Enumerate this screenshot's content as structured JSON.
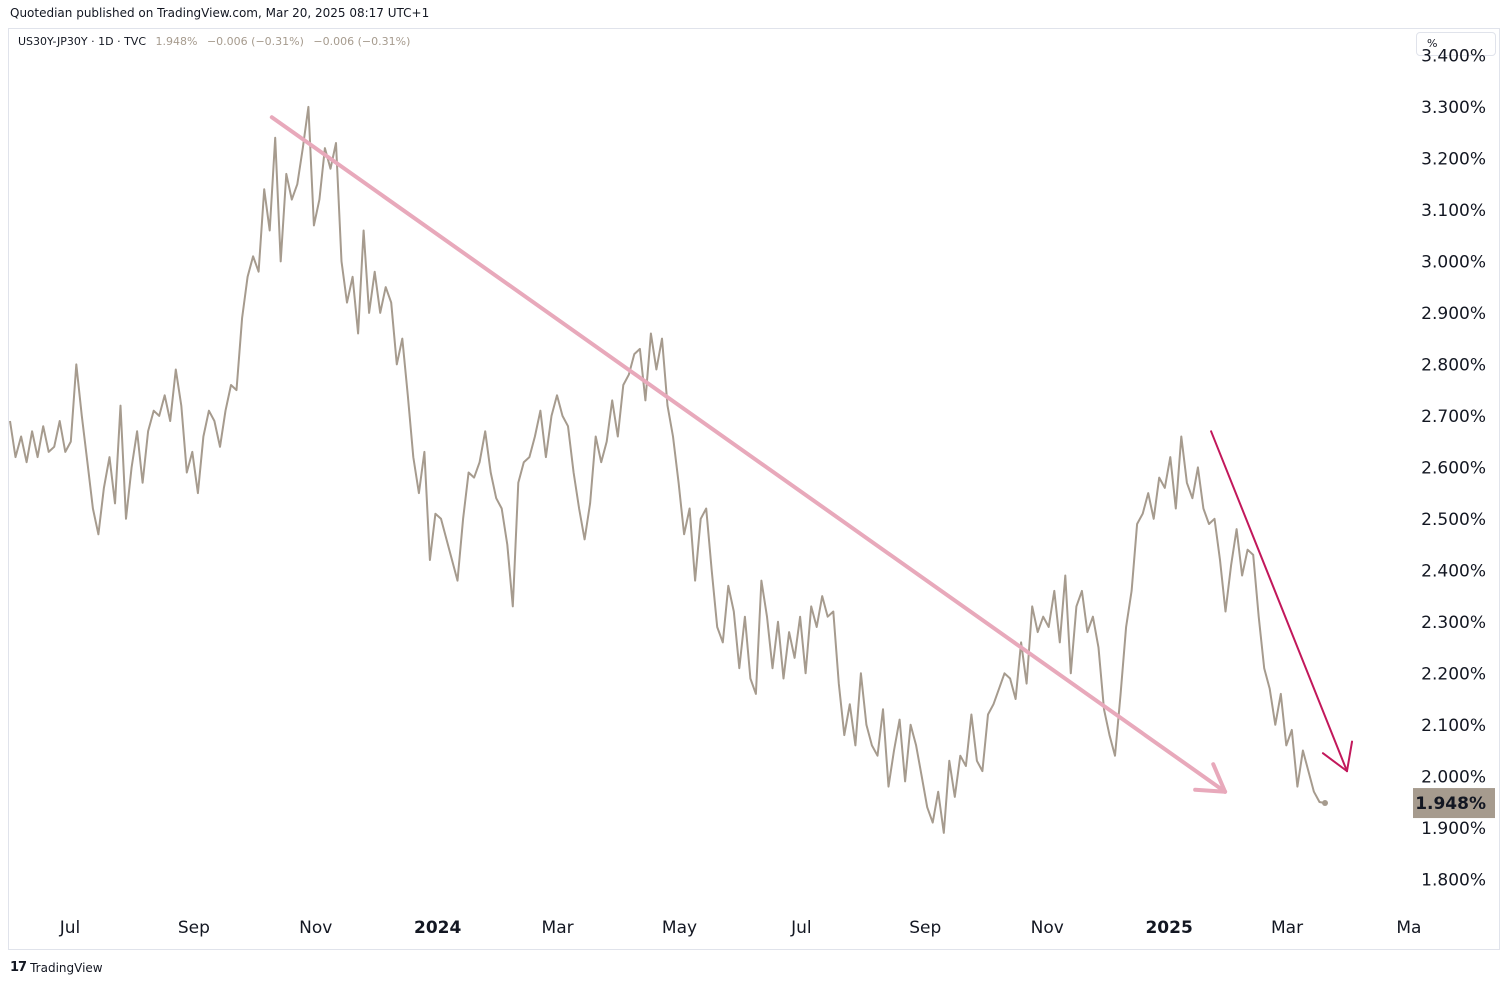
{
  "header": {
    "published": "Quotedian published on TradingView.com, Mar 20, 2025 08:17 UTC+1"
  },
  "legend": {
    "symbol": "US30Y-JP30Y · 1D · TVC",
    "last": "1.948%",
    "change": "−0.006 (−0.31%)",
    "change2": "−0.006 (−0.31%)"
  },
  "unit_label": "%",
  "footer": {
    "logo": "17",
    "brand": "TradingView"
  },
  "colors": {
    "line": "#a69b8e",
    "trend": "#e8a9bb",
    "arrow": "#c2185b",
    "price_tag": "#a69b8e"
  },
  "chart_data": {
    "type": "line",
    "series": [
      {
        "values": [
          2.69,
          2.62,
          2.66,
          2.61,
          2.67,
          2.62,
          2.68,
          2.63,
          2.64,
          2.69,
          2.63,
          2.65,
          2.8,
          2.7,
          2.61,
          2.52,
          2.47,
          2.56,
          2.62,
          2.53,
          2.72,
          2.5,
          2.6,
          2.67,
          2.57,
          2.67,
          2.71,
          2.7,
          2.74,
          2.69,
          2.79,
          2.72,
          2.59,
          2.63,
          2.55,
          2.66,
          2.71,
          2.69,
          2.64,
          2.71,
          2.76,
          2.75,
          2.89,
          2.97,
          3.01,
          2.98,
          3.14,
          3.06,
          3.24,
          3.0,
          3.17,
          3.12,
          3.15,
          3.22,
          3.3,
          3.07,
          3.12,
          3.22,
          3.18,
          3.23,
          3.0,
          2.92,
          2.97,
          2.86,
          3.06,
          2.9,
          2.98,
          2.9,
          2.95,
          2.92,
          2.8,
          2.85,
          2.74,
          2.62,
          2.55,
          2.63,
          2.42,
          2.51,
          2.5,
          2.46,
          2.42,
          2.38,
          2.5,
          2.59,
          2.58,
          2.61,
          2.67,
          2.59,
          2.54,
          2.52,
          2.45,
          2.33,
          2.57,
          2.61,
          2.62,
          2.66,
          2.71,
          2.62,
          2.7,
          2.74,
          2.7,
          2.68,
          2.59,
          2.52,
          2.46,
          2.53,
          2.66,
          2.61,
          2.65,
          2.73,
          2.66,
          2.76,
          2.78,
          2.82,
          2.83,
          2.73,
          2.86,
          2.79,
          2.85,
          2.72,
          2.66,
          2.57,
          2.47,
          2.52,
          2.38,
          2.5,
          2.52,
          2.4,
          2.29,
          2.26,
          2.37,
          2.32,
          2.21,
          2.31,
          2.19,
          2.16,
          2.38,
          2.31,
          2.21,
          2.3,
          2.19,
          2.28,
          2.23,
          2.31,
          2.2,
          2.33,
          2.29,
          2.35,
          2.31,
          2.32,
          2.18,
          2.08,
          2.14,
          2.06,
          2.2,
          2.1,
          2.06,
          2.04,
          2.13,
          1.98,
          2.05,
          2.11,
          1.99,
          2.1,
          2.06,
          2.0,
          1.94,
          1.91,
          1.97,
          1.89,
          2.03,
          1.96,
          2.04,
          2.02,
          2.12,
          2.03,
          2.01,
          2.12,
          2.14,
          2.17,
          2.2,
          2.19,
          2.15,
          2.26,
          2.18,
          2.33,
          2.28,
          2.31,
          2.29,
          2.36,
          2.26,
          2.39,
          2.2,
          2.33,
          2.36,
          2.28,
          2.31,
          2.25,
          2.13,
          2.08,
          2.04,
          2.16,
          2.29,
          2.36,
          2.49,
          2.51,
          2.55,
          2.5,
          2.58,
          2.56,
          2.62,
          2.52,
          2.66,
          2.57,
          2.54,
          2.6,
          2.52,
          2.49,
          2.5,
          2.42,
          2.32,
          2.41,
          2.48,
          2.39,
          2.44,
          2.43,
          2.31,
          2.21,
          2.17,
          2.1,
          2.16,
          2.06,
          2.09,
          1.98,
          2.05,
          2.01,
          1.97,
          1.95,
          1.948
        ]
      }
    ],
    "x_start": "2023-06-01",
    "x_end": "2025-03-20",
    "x_tick_labels": [
      "Jul",
      "Sep",
      "Nov",
      "2024",
      "Mar",
      "May",
      "Jul",
      "Sep",
      "Nov",
      "2025",
      "Mar",
      "Ma"
    ],
    "y_tick_labels": [
      "3.400%",
      "3.300%",
      "3.200%",
      "3.100%",
      "3.000%",
      "2.900%",
      "2.800%",
      "2.700%",
      "2.600%",
      "2.500%",
      "2.400%",
      "2.300%",
      "2.200%",
      "2.100%",
      "2.000%",
      "1.900%",
      "1.800%"
    ],
    "ylim": [
      1.75,
      3.43
    ],
    "price_tag": "1.948%",
    "annotations": [
      {
        "type": "trend-arrow",
        "from": [
          "2023-10-10",
          3.28
        ],
        "to": [
          "2025-01-29",
          1.97
        ]
      },
      {
        "type": "trend-arrow",
        "from": [
          "2025-01-22",
          2.67
        ],
        "to": [
          "2025-03-31",
          2.01
        ]
      }
    ]
  }
}
